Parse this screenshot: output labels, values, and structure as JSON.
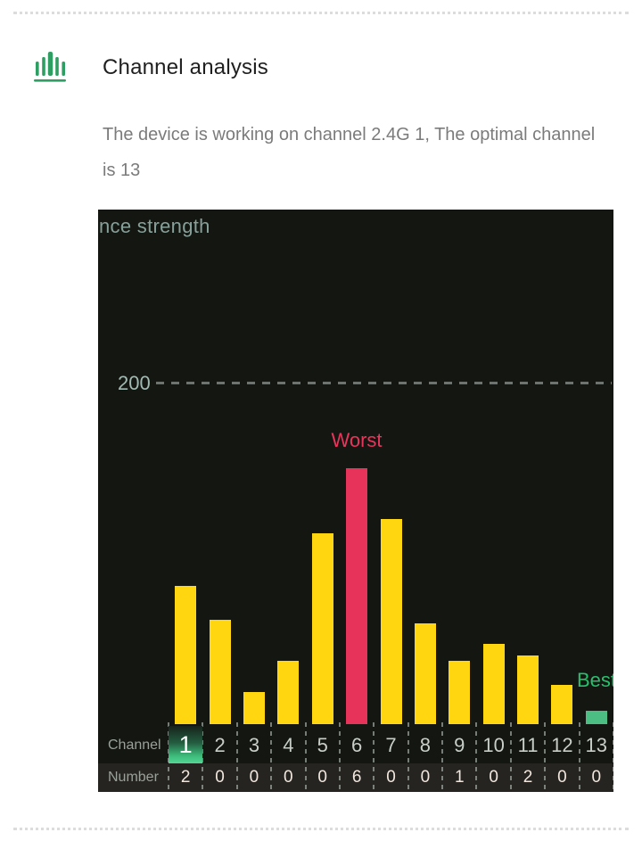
{
  "header": {
    "icon": "bar-chart-icon",
    "title": "Channel analysis",
    "description": "The device is working on channel 2.4G 1, The optimal channel is 13"
  },
  "chart_data": {
    "type": "bar",
    "title": "nce strength",
    "gridline_label": "200",
    "gridline_value": 200,
    "ylim": [
      0,
      300
    ],
    "grid": "single dashed horizontal line at 200",
    "legend": "none",
    "categories": [
      "1",
      "2",
      "3",
      "4",
      "5",
      "6",
      "7",
      "8",
      "9",
      "10",
      "11",
      "12",
      "13"
    ],
    "series": [
      {
        "name": "interference_strength",
        "values": [
          81,
          61,
          19,
          37,
          112,
          150,
          120,
          59,
          37,
          47,
          40,
          23,
          8
        ]
      },
      {
        "name": "number_of_networks",
        "values": [
          2,
          0,
          0,
          0,
          0,
          6,
          0,
          0,
          1,
          0,
          2,
          0,
          0
        ]
      }
    ],
    "row_labels": {
      "channel": "Channel",
      "number": "Number"
    },
    "annotations": {
      "worst": "Worst",
      "best": "Best",
      "worst_channel": "6",
      "best_channel": "13",
      "active_channel": "1"
    },
    "colors": {
      "background": "#131611",
      "bar": "#ffd60f",
      "worst_bar": "#e7335a",
      "worst_text": "#e8355c",
      "best_bar": "#4cbd83",
      "best_text": "#2abf6e",
      "active_highlight": "#55d796",
      "header_icon_green": "#2f9e63",
      "gridline": "#6e736f"
    }
  }
}
